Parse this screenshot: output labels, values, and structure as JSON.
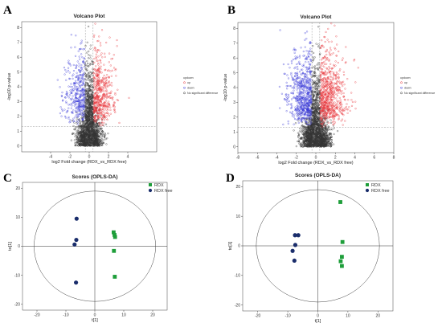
{
  "chart_data": [
    {
      "panel": "A",
      "type": "scatter",
      "title": "Volcano Plot",
      "xlabel": "log2 Fold change (RDX_vs_RDX free)",
      "ylabel": "-log10 p-value",
      "xlim": [
        -7,
        7
      ],
      "ylim": [
        -0.4,
        8.4
      ],
      "xticks": [
        -4,
        -2,
        0,
        2,
        4
      ],
      "yticks": [
        0,
        1,
        2,
        3,
        4,
        5,
        6,
        7,
        8
      ],
      "thresholds": {
        "x": [
          -0.4,
          0.4
        ],
        "y": 1.3
      },
      "legend": {
        "title": "updown",
        "entries": [
          "up",
          "down",
          "No significant difference"
        ],
        "colors": [
          "#e8383d",
          "#3d3dd9",
          "#333333"
        ]
      },
      "sim": {
        "n_up": 520,
        "n_down": 360,
        "n_ns": 1800,
        "spread": 1.05,
        "seed": 11
      }
    },
    {
      "panel": "B",
      "type": "scatter",
      "title": "Volcano Plot",
      "xlabel": "log2 Fold change (RDX_vs_RDX free)",
      "ylabel": "-log10 p-value",
      "xlim": [
        -8,
        8
      ],
      "ylim": [
        -0.4,
        8.4
      ],
      "xticks": [
        -8,
        -6,
        -4,
        -2,
        0,
        2,
        4,
        6,
        8
      ],
      "yticks": [
        0,
        1,
        2,
        3,
        4,
        5,
        6,
        7,
        8
      ],
      "thresholds": {
        "x": [
          -0.4,
          0.4
        ],
        "y": 1.3
      },
      "legend": {
        "title": "updown",
        "entries": [
          "up",
          "down",
          "No significant difference"
        ],
        "colors": [
          "#e8383d",
          "#3d3dd9",
          "#333333"
        ]
      },
      "sim": {
        "n_up": 700,
        "n_down": 640,
        "n_ns": 1900,
        "spread": 1.25,
        "seed": 29
      }
    },
    {
      "panel": "C",
      "type": "scatter",
      "title": "Scores (OPLS-DA)",
      "xlabel": "t[1]",
      "ylabel": "to[1]",
      "xlim": [
        -25,
        25
      ],
      "ylim": [
        -22,
        22
      ],
      "xticks": [
        -20,
        -10,
        0,
        10,
        20
      ],
      "yticks": [
        -20,
        -10,
        0,
        10,
        20
      ],
      "ellipse": {
        "rx": 21,
        "ry": 19
      },
      "series": [
        {
          "name": "RDX",
          "color": "#1e9e3a",
          "marker": "square",
          "points": [
            [
              6.5,
              4.8
            ],
            [
              6.8,
              3.9
            ],
            [
              7.0,
              3.2
            ],
            [
              6.6,
              -1.6
            ],
            [
              6.9,
              -10.5
            ]
          ]
        },
        {
          "name": "RDX free",
          "color": "#1a2d6b",
          "marker": "circle",
          "points": [
            [
              -6.3,
              9.5
            ],
            [
              -6.4,
              2.2
            ],
            [
              -7.0,
              0.6
            ],
            [
              -6.5,
              -12.5
            ]
          ]
        }
      ]
    },
    {
      "panel": "D",
      "type": "scatter",
      "title": "Scores (OPLS-DA)",
      "xlabel": "t[1]",
      "ylabel": "to[1]",
      "xlim": [
        -25,
        25
      ],
      "ylim": [
        -22,
        22
      ],
      "xticks": [
        -20,
        -10,
        0,
        10,
        20
      ],
      "yticks": [
        -20,
        -10,
        0,
        10,
        20
      ],
      "ellipse": {
        "rx": 20.5,
        "ry": 19
      },
      "series": [
        {
          "name": "RDX",
          "color": "#1e9e3a",
          "marker": "square",
          "points": [
            [
              7.5,
              14.8
            ],
            [
              8.2,
              1.3
            ],
            [
              8.0,
              -3.7
            ],
            [
              7.6,
              -5.2
            ],
            [
              8.0,
              -6.8
            ]
          ]
        },
        {
          "name": "RDX free",
          "color": "#1a2d6b",
          "marker": "circle",
          "points": [
            [
              -7.6,
              3.6
            ],
            [
              -6.5,
              3.6
            ],
            [
              -7.5,
              0.3
            ],
            [
              -8.4,
              -1.7
            ],
            [
              -7.8,
              -5.0
            ]
          ]
        }
      ]
    }
  ]
}
